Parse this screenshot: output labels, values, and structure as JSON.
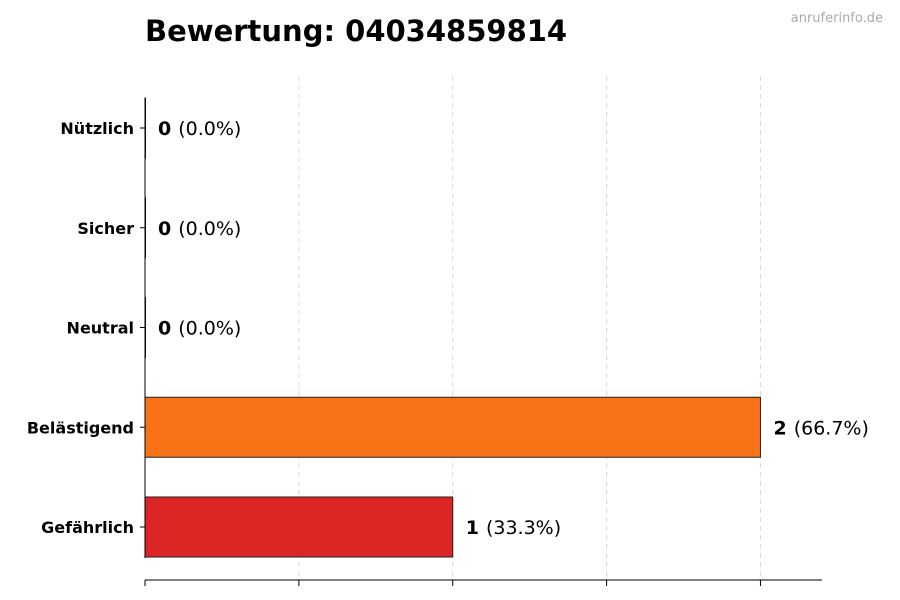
{
  "watermark": "anruferinfo.de",
  "chart_data": {
    "type": "bar",
    "orientation": "horizontal",
    "title": "Bewertung: 04034859814",
    "categories": [
      "Nützlich",
      "Sicher",
      "Neutral",
      "Belästigend",
      "Gefährlich"
    ],
    "values": [
      0,
      0,
      0,
      2,
      1
    ],
    "percent_labels": [
      "(0.0%)",
      "(0.0%)",
      "(0.0%)",
      "(66.7%)",
      "(33.3%)"
    ],
    "colors": [
      "#16a34a",
      "#3b82f6",
      "#9ca3af",
      "#f97316",
      "#dc2626"
    ],
    "xlim": [
      0,
      2.2
    ],
    "xticks": [
      0,
      0.5,
      1,
      1.5,
      2
    ],
    "grid": true,
    "xlabel": "",
    "ylabel": ""
  }
}
